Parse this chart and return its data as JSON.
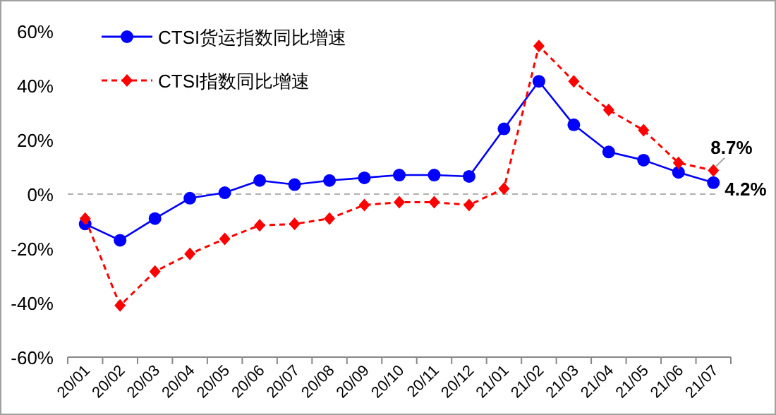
{
  "chart_data": {
    "type": "line",
    "categories": [
      "20/01",
      "20/02",
      "20/03",
      "20/04",
      "20/05",
      "20/06",
      "20/07",
      "20/08",
      "20/09",
      "20/10",
      "20/11",
      "20/12",
      "21/01",
      "21/02",
      "21/03",
      "21/04",
      "21/05",
      "21/06",
      "21/07"
    ],
    "series": [
      {
        "name": "CTSI货运指数同比增速",
        "color": "#0000ff",
        "marker": "circle",
        "line_style": "solid",
        "values": [
          -11,
          -17,
          -9,
          -1.5,
          0.5,
          5,
          3.5,
          5,
          6,
          7,
          7,
          6.5,
          24,
          41.5,
          25.5,
          15.5,
          12.5,
          8,
          4.2
        ],
        "value_labels": [
          null,
          null,
          null,
          null,
          null,
          null,
          null,
          null,
          null,
          null,
          null,
          null,
          null,
          null,
          null,
          null,
          null,
          null,
          "4.2%"
        ]
      },
      {
        "name": "CTSI指数同比增速",
        "color": "#ff0000",
        "marker": "diamond",
        "line_style": "dashed",
        "values": [
          -9,
          -41,
          -28.5,
          -22,
          -16.5,
          -11.5,
          -11,
          -9,
          -4,
          -3,
          -3,
          -4,
          2,
          54.5,
          41.5,
          31,
          23.5,
          11.5,
          8.7
        ],
        "value_labels": [
          null,
          null,
          null,
          null,
          null,
          null,
          null,
          null,
          null,
          null,
          null,
          null,
          null,
          null,
          null,
          null,
          null,
          null,
          "8.7%"
        ]
      }
    ],
    "ylim": [
      -60,
      60
    ],
    "yticks": [
      {
        "value": -60,
        "label": "-60%"
      },
      {
        "value": -40,
        "label": "-40%"
      },
      {
        "value": -20,
        "label": "-20%"
      },
      {
        "value": 0,
        "label": "0%"
      },
      {
        "value": 20,
        "label": "20%"
      },
      {
        "value": 40,
        "label": "40%"
      },
      {
        "value": 60,
        "label": "60%"
      }
    ],
    "ref_lines": [
      {
        "axis": "y",
        "value": 0,
        "color": "#b0b0b0",
        "line_style": "dashed"
      }
    ],
    "grid": false,
    "legend": "top left"
  }
}
